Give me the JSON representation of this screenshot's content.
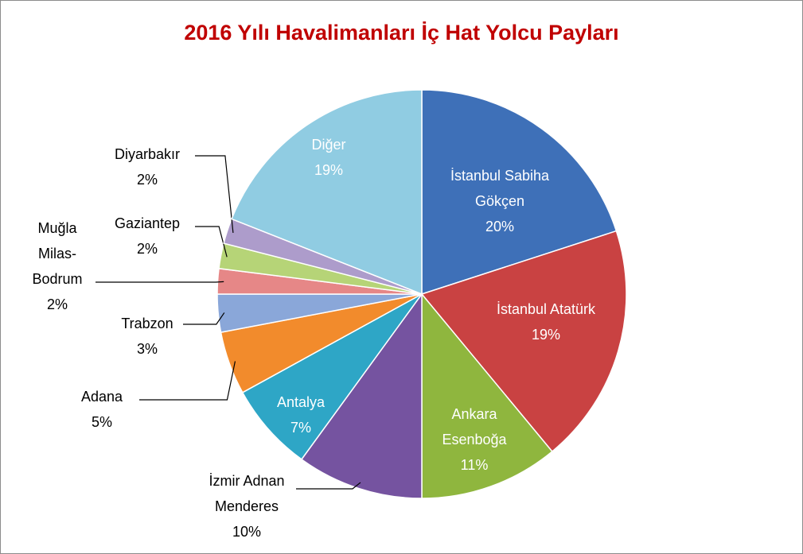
{
  "chart_data": {
    "type": "pie",
    "title": "2016 Yılı Havalimanları İç Hat Yolcu Payları",
    "categories": [
      "İstanbul Sabiha Gökçen",
      "İstanbul Atatürk",
      "Ankara Esenboğa",
      "İzmir Adnan Menderes",
      "Antalya",
      "Adana",
      "Trabzon",
      "Muğla Milas-Bodrum",
      "Gaziantep",
      "Diyarbakır",
      "Diğer"
    ],
    "values": [
      20,
      19,
      11,
      10,
      7,
      5,
      3,
      2,
      2,
      2,
      19
    ],
    "value_labels": [
      "20%",
      "19%",
      "11%",
      "10%",
      "7%",
      "5%",
      "3%",
      "2%",
      "2%",
      "2%",
      "19%"
    ],
    "colors": [
      "#3e70b8",
      "#c94242",
      "#8fb63e",
      "#7553a0",
      "#2ea6c6",
      "#f28b2c",
      "#8aa7d9",
      "#e68787",
      "#b6d477",
      "#ad9ccb",
      "#90cce2"
    ]
  }
}
